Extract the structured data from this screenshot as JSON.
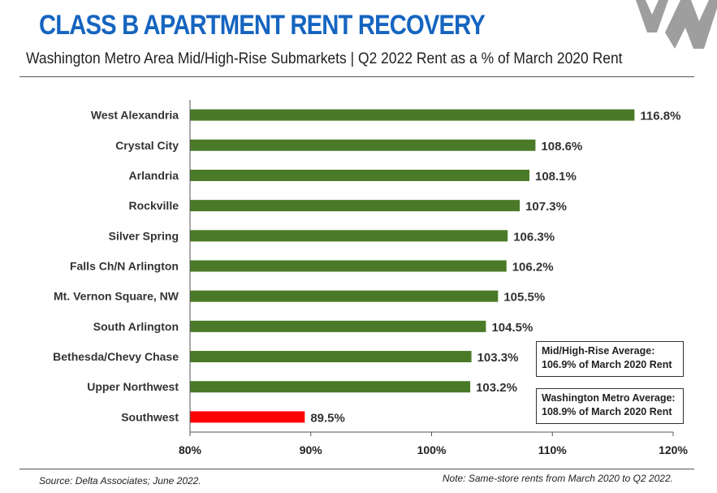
{
  "header": {
    "title": "CLASS B APARTMENT RENT RECOVERY",
    "subtitle": "Washington Metro Area Mid/High-Rise Submarkets | Q2 2022 Rent as a % of March 2020 Rent"
  },
  "footer": {
    "source": "Source: Delta Associates; June 2022.",
    "note": "Note: Same-store rents from March 2020 to Q2 2022."
  },
  "annotations": {
    "mid_high_line1": "Mid/High-Rise Average:",
    "mid_high_line2": "106.9% of March 2020 Rent",
    "metro_line1": "Washington Metro Average:",
    "metro_line2": "108.9% of March 2020 Rent"
  },
  "colors": {
    "title": "#1565c0",
    "bar_default": "#4a7a28",
    "bar_highlight": "#ff0000",
    "watermark": "#9e9e9e"
  },
  "chart_data": {
    "type": "bar",
    "orientation": "horizontal",
    "title": "CLASS B APARTMENT RENT RECOVERY",
    "categories": [
      "West Alexandria",
      "Crystal City",
      "Arlandria",
      "Rockville",
      "Silver Spring",
      "Falls Ch/N Arlington",
      "Mt. Vernon Square, NW",
      "South Arlington",
      "Bethesda/Chevy Chase",
      "Upper Northwest",
      "Southwest"
    ],
    "values": [
      116.8,
      108.6,
      108.1,
      107.3,
      106.3,
      106.2,
      105.5,
      104.5,
      103.3,
      103.2,
      89.5
    ],
    "value_labels": [
      "116.8%",
      "108.6%",
      "108.1%",
      "107.3%",
      "106.3%",
      "106.2%",
      "105.5%",
      "104.5%",
      "103.3%",
      "103.2%",
      "89.5%"
    ],
    "highlight": [
      "Southwest"
    ],
    "xlim": [
      80,
      120
    ],
    "xticks": [
      80,
      90,
      100,
      110,
      120
    ],
    "xtick_labels": [
      "80%",
      "90%",
      "100%",
      "110%",
      "120%"
    ],
    "grid": false,
    "legend": "none"
  }
}
